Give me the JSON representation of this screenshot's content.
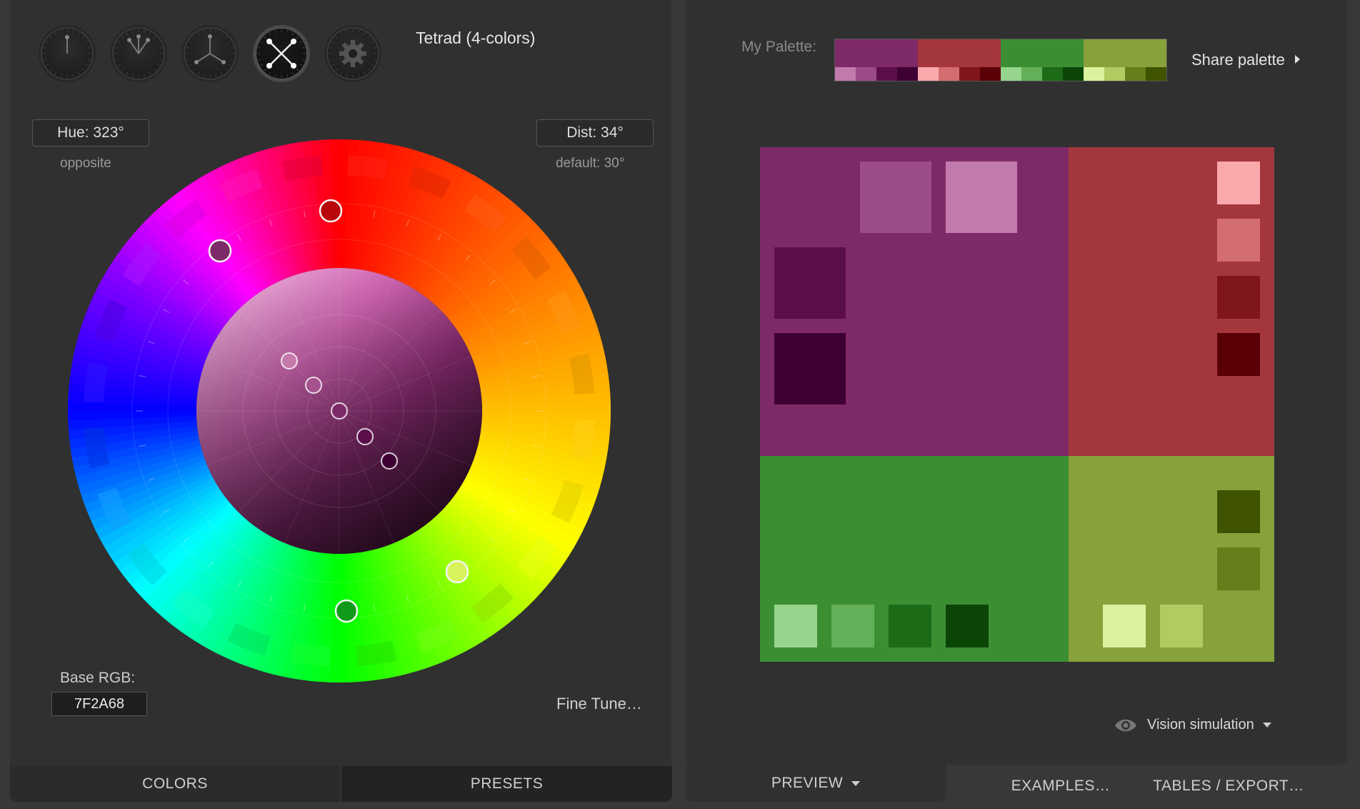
{
  "modes": [
    {
      "name": "mono-mode-button",
      "icon": "mono-icon",
      "active": false
    },
    {
      "name": "complement-mode-button",
      "icon": "complement-icon",
      "active": false
    },
    {
      "name": "triad-mode-button",
      "icon": "triad-icon",
      "active": false
    },
    {
      "name": "tetrad-mode-button",
      "icon": "tetrad-icon",
      "active": true
    },
    {
      "name": "free-mode-button",
      "icon": "gear-icon",
      "active": false
    }
  ],
  "scheme_title": "Tetrad (4-colors)",
  "hue": {
    "label": "Hue: 323°",
    "note": "opposite"
  },
  "dist": {
    "label": "Dist: 34°",
    "note": "default: 30°"
  },
  "base_rgb": {
    "label": "Base RGB:",
    "value": "7F2A68"
  },
  "fine_tune": "Fine Tune…",
  "left_tabs": {
    "colors": "COLORS",
    "presets": "PRESETS"
  },
  "right_tabs": {
    "preview": "PREVIEW",
    "examples": "EXAMPLES…",
    "tables": "TABLES / EXPORT…"
  },
  "palette": {
    "label": "My Palette:",
    "share": "Share palette",
    "colors": [
      {
        "main": "#7f2a68",
        "shades": [
          "#c17aab",
          "#9c4c87",
          "#5c0e49",
          "#3e0033"
        ]
      },
      {
        "main": "#a4373d",
        "shades": [
          "#f9a8ac",
          "#d36d72",
          "#7e161b",
          "#5a0007"
        ]
      },
      {
        "main": "#3c8e33",
        "shades": [
          "#96d58d",
          "#64b05a",
          "#1e6b17",
          "#0a4506"
        ]
      },
      {
        "main": "#87a23a",
        "shades": [
          "#dcf19d",
          "#afcb62",
          "#667e1b",
          "#3f5300"
        ]
      }
    ]
  },
  "vision": "Vision simulation"
}
